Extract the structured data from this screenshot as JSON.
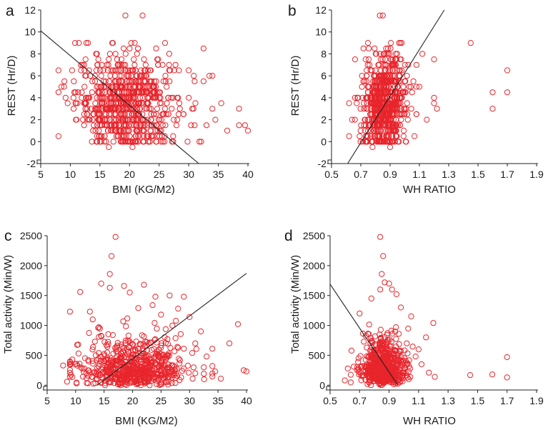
{
  "marker_color": "#e8252c",
  "axis_color": "#222222",
  "line_color": "#222222",
  "chart_data": [
    {
      "panel": "a",
      "type": "scatter",
      "xlabel": "BMI (KG/M2)",
      "ylabel": "REST (Hr/D)",
      "xlim": [
        5,
        40
      ],
      "ylim": [
        -2,
        12
      ],
      "xticks": [
        5,
        10,
        15,
        20,
        25,
        30,
        35,
        40
      ],
      "yticks": [
        -2,
        0,
        2,
        4,
        6,
        8,
        10,
        12
      ],
      "cloud": {
        "x_mean": 19.5,
        "x_sd": 4.2,
        "x_min": 8,
        "x_max": 33,
        "y_levels": [
          0,
          0.5,
          1,
          1.5,
          2,
          2.5,
          3,
          3.5,
          4,
          4.5,
          5,
          5.5,
          6,
          6.5,
          7,
          7.5,
          8,
          8.5,
          9
        ],
        "y_mean": 3.5,
        "y_sd": 2.2,
        "n": 700
      },
      "points": [
        [
          19.3,
          11.5
        ],
        [
          22.2,
          11.5
        ],
        [
          8.5,
          5.0
        ],
        [
          9.0,
          5.5
        ],
        [
          9.2,
          4.0
        ],
        [
          10.3,
          6.5
        ],
        [
          35.5,
          3.5
        ],
        [
          34.0,
          3.0
        ],
        [
          33.5,
          6.0
        ],
        [
          34.0,
          6.0
        ],
        [
          36.5,
          1.0
        ],
        [
          38.5,
          3.0
        ],
        [
          38.5,
          1.5
        ],
        [
          39.5,
          1.5
        ],
        [
          40.0,
          1.0
        ],
        [
          34.5,
          2.0
        ],
        [
          32.5,
          8.5
        ],
        [
          31.0,
          5.5
        ],
        [
          33.0,
          1.5
        ],
        [
          16.5,
          -0.5
        ],
        [
          20.5,
          -0.5
        ],
        [
          13.0,
          9.0
        ],
        [
          12.7,
          9.0
        ],
        [
          10.8,
          9.0
        ],
        [
          26.0,
          9.0
        ],
        [
          24.5,
          8.5
        ],
        [
          32.5,
          5.5
        ],
        [
          30.0,
          6.5
        ],
        [
          31.0,
          1.5
        ]
      ],
      "fit_line": [
        [
          5,
          10.1
        ],
        [
          31.7,
          -2.0
        ]
      ]
    },
    {
      "panel": "b",
      "type": "scatter",
      "xlabel": "WH RATIO",
      "ylabel": "REST (Hr/D)",
      "xlim": [
        0.5,
        1.9
      ],
      "ylim": [
        -2,
        12
      ],
      "xticks": [
        "0.5",
        "0.7",
        "0.9",
        "1.1",
        "1.3",
        "1.5",
        "1.7",
        "1.9"
      ],
      "yticks": [
        -2,
        0,
        2,
        4,
        6,
        8,
        10,
        12
      ],
      "cloud": {
        "x_mean": 0.86,
        "x_sd": 0.075,
        "x_min": 0.66,
        "x_max": 1.08,
        "y_levels": [
          0,
          0.5,
          1,
          1.5,
          2,
          2.5,
          3,
          3.5,
          4,
          4.5,
          5,
          5.5,
          6,
          6.5,
          7,
          7.5,
          8,
          8.5,
          9
        ],
        "y_mean": 3.5,
        "y_sd": 2.2,
        "n": 700
      },
      "points": [
        [
          0.83,
          11.5
        ],
        [
          0.85,
          11.5
        ],
        [
          0.62,
          3.5
        ],
        [
          0.62,
          0.5
        ],
        [
          0.64,
          2.0
        ],
        [
          1.45,
          9.0
        ],
        [
          1.6,
          4.5
        ],
        [
          1.6,
          3.0
        ],
        [
          1.7,
          6.5
        ],
        [
          1.7,
          4.5
        ],
        [
          1.2,
          7.5
        ],
        [
          1.2,
          4.0
        ],
        [
          1.2,
          3.5
        ],
        [
          1.22,
          3.0
        ],
        [
          1.12,
          8.0
        ],
        [
          1.1,
          5.0
        ],
        [
          1.15,
          2.0
        ],
        [
          0.78,
          -0.5
        ],
        [
          0.9,
          -0.5
        ],
        [
          0.97,
          9.0
        ],
        [
          1.0,
          5.5
        ],
        [
          1.05,
          4.5
        ]
      ],
      "fit_line": [
        [
          0.61,
          -2.0
        ],
        [
          1.27,
          12.0
        ]
      ]
    },
    {
      "panel": "c",
      "type": "scatter",
      "xlabel": "BMI (KG/M2)",
      "ylabel": "Total activity (Min/W)",
      "xlim": [
        5,
        40
      ],
      "ylim": [
        -80,
        2500
      ],
      "xticks": [
        5,
        10,
        15,
        20,
        25,
        30,
        35,
        40
      ],
      "yticks": [
        0,
        500,
        1000,
        1500,
        2000,
        2500
      ],
      "cloud": {
        "x_mean": 20.0,
        "x_sd": 4.6,
        "x_min": 9,
        "x_max": 34,
        "y_mode": "skew",
        "y_mean": 330,
        "y_sd": 300,
        "y_max": 1400,
        "n": 650
      },
      "points": [
        [
          17.0,
          2480
        ],
        [
          16.3,
          2160
        ],
        [
          16.0,
          1860
        ],
        [
          14.5,
          1700
        ],
        [
          10.8,
          1560
        ],
        [
          9.0,
          1230
        ],
        [
          7.8,
          330
        ],
        [
          8.5,
          60
        ],
        [
          35.5,
          110
        ],
        [
          34.5,
          230
        ],
        [
          37.0,
          700
        ],
        [
          38.5,
          1020
        ],
        [
          39.5,
          250
        ],
        [
          40.0,
          230
        ],
        [
          30.0,
          1140
        ],
        [
          32.0,
          900
        ],
        [
          22.0,
          1680
        ],
        [
          18.5,
          1660
        ],
        [
          19.5,
          1550
        ],
        [
          26.5,
          1500
        ],
        [
          29.0,
          1480
        ],
        [
          24.0,
          1480
        ],
        [
          16.0,
          1630
        ],
        [
          12.5,
          1230
        ],
        [
          13.0,
          1100
        ],
        [
          33.0,
          480
        ],
        [
          32.5,
          300
        ],
        [
          31.0,
          200
        ],
        [
          29.0,
          610
        ],
        [
          34.0,
          320
        ],
        [
          28.0,
          1280
        ],
        [
          21.0,
          1290
        ],
        [
          25.0,
          1180
        ],
        [
          23.5,
          1340
        ],
        [
          31.0,
          700
        ]
      ],
      "fit_line": [
        [
          13.8,
          0
        ],
        [
          40.0,
          1870
        ]
      ]
    },
    {
      "panel": "d",
      "type": "scatter",
      "xlabel": "WH RATIO",
      "ylabel": "Total activity (Min/W)",
      "xlim": [
        0.5,
        1.9
      ],
      "ylim": [
        -80,
        2500
      ],
      "xticks": [
        "0.5",
        "0.7",
        "0.9",
        "1.1",
        "1.3",
        "1.5",
        "1.7",
        "1.9"
      ],
      "yticks": [
        0,
        500,
        1000,
        1500,
        2000,
        2500
      ],
      "cloud": {
        "x_mean": 0.86,
        "x_sd": 0.075,
        "x_min": 0.64,
        "x_max": 1.08,
        "y_mode": "skew",
        "y_mean": 330,
        "y_sd": 300,
        "y_max": 1400,
        "n": 650
      },
      "points": [
        [
          0.84,
          2480
        ],
        [
          0.86,
          2160
        ],
        [
          0.85,
          1860
        ],
        [
          0.84,
          1600
        ],
        [
          0.87,
          1720
        ],
        [
          0.9,
          1700
        ],
        [
          0.92,
          1600
        ],
        [
          0.95,
          1520
        ],
        [
          0.78,
          1450
        ],
        [
          1.2,
          1040
        ],
        [
          1.15,
          800
        ],
        [
          1.12,
          350
        ],
        [
          1.17,
          210
        ],
        [
          1.21,
          140
        ],
        [
          1.45,
          170
        ],
        [
          1.6,
          180
        ],
        [
          1.7,
          470
        ],
        [
          1.7,
          130
        ],
        [
          0.62,
          280
        ],
        [
          0.66,
          310
        ],
        [
          0.6,
          80
        ],
        [
          0.7,
          1200
        ],
        [
          1.05,
          1150
        ],
        [
          1.02,
          700
        ],
        [
          1.08,
          480
        ],
        [
          1.1,
          600
        ],
        [
          0.98,
          1300
        ]
      ],
      "fit_line": [
        [
          0.5,
          1690
        ],
        [
          0.96,
          0
        ]
      ]
    }
  ]
}
